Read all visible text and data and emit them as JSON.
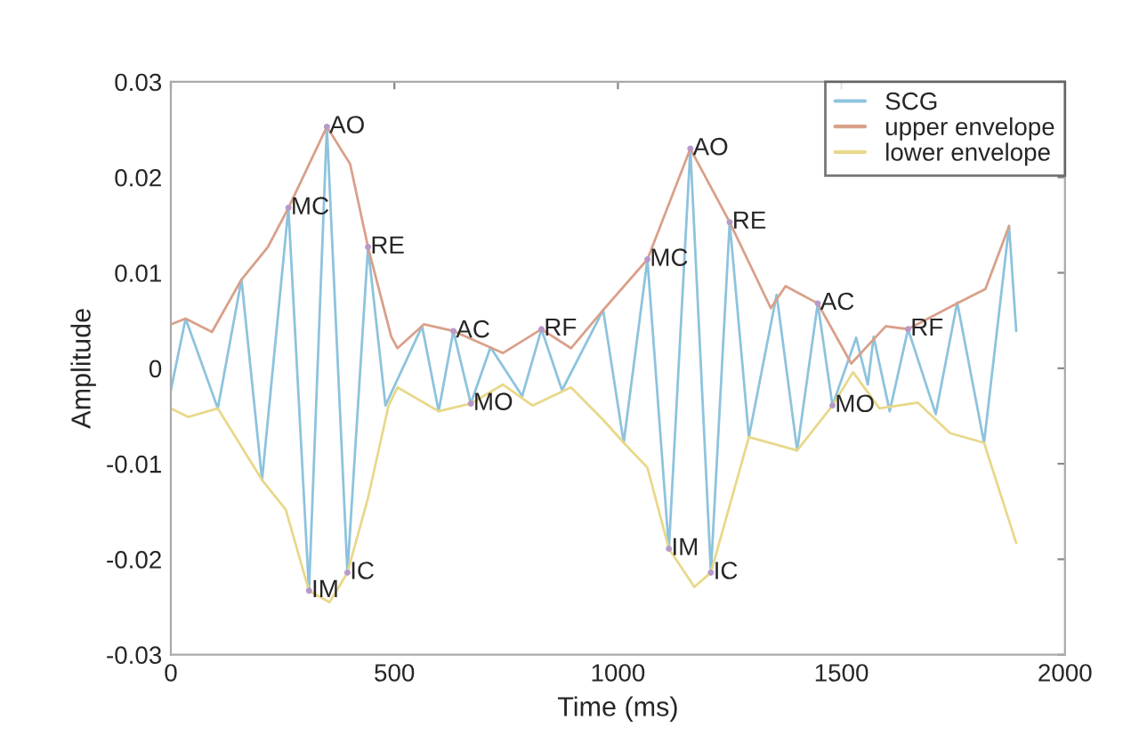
{
  "chart_data": {
    "type": "line",
    "xlabel": "Time (ms)",
    "ylabel": "Amplitude",
    "xlim": [
      0,
      2000
    ],
    "xticks": [
      0,
      500,
      1000,
      1500,
      2000
    ],
    "ylim": [
      -0.03,
      0.03
    ],
    "yticks": [
      -0.03,
      -0.02,
      -0.01,
      0,
      0.01,
      0.02,
      0.03
    ],
    "grid": false,
    "legend": "top right",
    "line_style": "solid",
    "marker": "none",
    "series": [
      {
        "name": "SCG",
        "color": "#8ec3dd",
        "x": [
          0,
          33,
          105,
          158,
          204,
          263,
          309,
          349,
          395,
          441,
          480,
          562,
          599,
          632,
          671,
          715,
          786,
          829,
          875,
          967,
          1013,
          1066,
          1114,
          1162,
          1208,
          1250,
          1293,
          1355,
          1401,
          1447,
          1480,
          1533,
          1559,
          1572,
          1608,
          1649,
          1711,
          1759,
          1819,
          1875,
          1891
        ],
        "values": [
          -0.0023,
          0.0052,
          -0.0042,
          0.0093,
          -0.0117,
          0.0168,
          -0.0233,
          0.0253,
          -0.0214,
          0.0127,
          -0.0039,
          0.0044,
          -0.0045,
          0.0039,
          -0.0037,
          0.0022,
          -0.0029,
          0.0041,
          -0.0023,
          0.0061,
          -0.0078,
          0.0114,
          -0.0189,
          0.023,
          -0.0214,
          0.0153,
          -0.0072,
          0.0077,
          -0.0086,
          0.0068,
          -0.0039,
          0.0032,
          -0.0017,
          0.0033,
          -0.0045,
          0.0041,
          -0.0048,
          0.0069,
          -0.0078,
          0.0149,
          0.0039
        ]
      },
      {
        "name": "upper envelope",
        "color": "#d9a08a",
        "x": [
          0,
          33,
          92,
          158,
          217,
          263,
          349,
          401,
          441,
          493,
          507,
          566,
          632,
          743,
          829,
          895,
          967,
          1066,
          1162,
          1250,
          1342,
          1375,
          1447,
          1522,
          1599,
          1649,
          1763,
          1822,
          1875
        ],
        "values": [
          0.0046,
          0.0052,
          0.0038,
          0.0093,
          0.0127,
          0.0168,
          0.0253,
          0.0214,
          0.0127,
          0.0033,
          0.0021,
          0.0046,
          0.0039,
          0.0016,
          0.0041,
          0.0021,
          0.0061,
          0.0114,
          0.023,
          0.0153,
          0.0063,
          0.0086,
          0.0068,
          0.0005,
          0.0044,
          0.0041,
          0.0069,
          0.0083,
          0.0149
        ]
      },
      {
        "name": "lower envelope",
        "color": "#e8d88a",
        "x": [
          0,
          39,
          105,
          204,
          257,
          309,
          355,
          395,
          441,
          487,
          507,
          599,
          671,
          743,
          809,
          895,
          967,
          1013,
          1066,
          1114,
          1171,
          1208,
          1293,
          1401,
          1480,
          1526,
          1585,
          1671,
          1743,
          1819,
          1891
        ],
        "values": [
          -0.0042,
          -0.0051,
          -0.0042,
          -0.0117,
          -0.0148,
          -0.0233,
          -0.0245,
          -0.0214,
          -0.0136,
          -0.0039,
          -0.002,
          -0.0045,
          -0.0037,
          -0.0017,
          -0.0039,
          -0.002,
          -0.0054,
          -0.0078,
          -0.0104,
          -0.0189,
          -0.0229,
          -0.0214,
          -0.0072,
          -0.0086,
          -0.0039,
          -0.0004,
          -0.0042,
          -0.0036,
          -0.0068,
          -0.0078,
          -0.0183
        ]
      }
    ],
    "annotations": [
      {
        "text": "MC",
        "x": 263,
        "y": 0.0168
      },
      {
        "text": "IM",
        "x": 309,
        "y": -0.0233
      },
      {
        "text": "AO",
        "x": 349,
        "y": 0.0253
      },
      {
        "text": "IC",
        "x": 395,
        "y": -0.0214
      },
      {
        "text": "RE",
        "x": 441,
        "y": 0.0127
      },
      {
        "text": "AC",
        "x": 632,
        "y": 0.0039
      },
      {
        "text": "MO",
        "x": 671,
        "y": -0.0037
      },
      {
        "text": "RF",
        "x": 829,
        "y": 0.0041
      },
      {
        "text": "MC",
        "x": 1066,
        "y": 0.0114
      },
      {
        "text": "IM",
        "x": 1114,
        "y": -0.0189
      },
      {
        "text": "AO",
        "x": 1162,
        "y": 0.023
      },
      {
        "text": "IC",
        "x": 1208,
        "y": -0.0214
      },
      {
        "text": "RE",
        "x": 1250,
        "y": 0.0153
      },
      {
        "text": "AC",
        "x": 1447,
        "y": 0.0068
      },
      {
        "text": "MO",
        "x": 1480,
        "y": -0.0039
      },
      {
        "text": "RF",
        "x": 1649,
        "y": 0.0041
      }
    ]
  }
}
